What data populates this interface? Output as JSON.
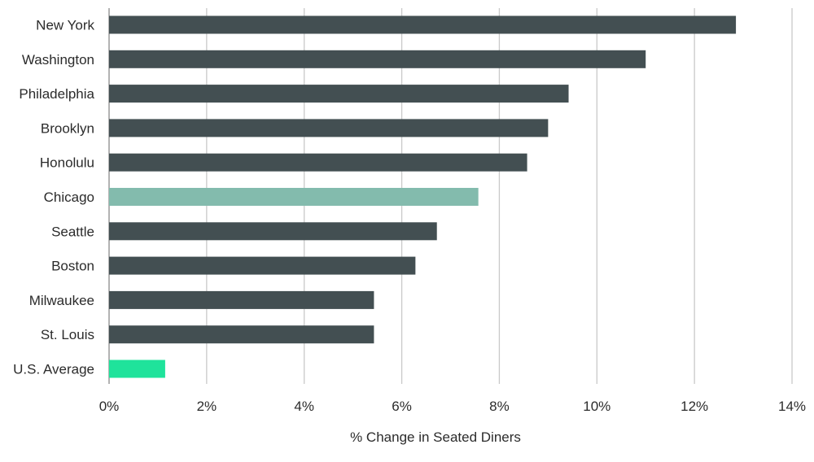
{
  "chart_data": {
    "type": "bar",
    "orientation": "horizontal",
    "title": "",
    "xlabel": "% Change in Seated Diners",
    "ylabel": "",
    "xlim": [
      0,
      14
    ],
    "tick_values": [
      0,
      2,
      4,
      6,
      8,
      10,
      12,
      14
    ],
    "tick_labels": [
      "0%",
      "2%",
      "4%",
      "6%",
      "8%",
      "10%",
      "12%",
      "14%"
    ],
    "grid": true,
    "categories": [
      "New York",
      "Washington",
      "Philadelphia",
      "Brooklyn",
      "Honolulu",
      "Chicago",
      "Seattle",
      "Boston",
      "Milwaukee",
      "St. Louis",
      "U.S. Average"
    ],
    "values": [
      12.85,
      11.0,
      9.42,
      9.0,
      8.57,
      7.57,
      6.72,
      6.28,
      5.43,
      5.43,
      1.15
    ],
    "bar_colors": [
      "#434f52",
      "#434f52",
      "#434f52",
      "#434f52",
      "#434f52",
      "#83bbad",
      "#434f52",
      "#434f52",
      "#434f52",
      "#434f52",
      "#1fe39b"
    ]
  }
}
